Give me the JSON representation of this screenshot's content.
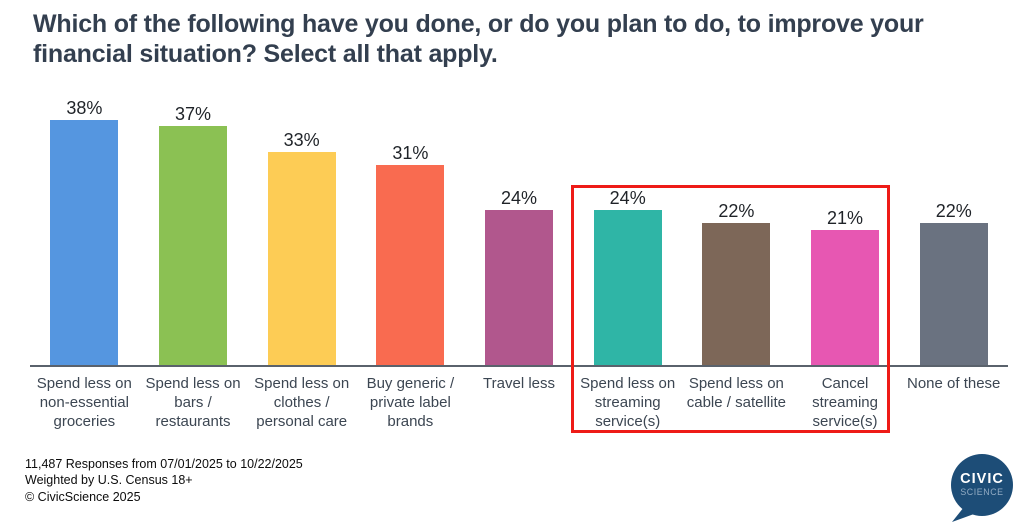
{
  "title": "Which of the following have you done, or do you plan to do, to improve your financial situation? Select all that apply.",
  "chart_data": {
    "type": "bar",
    "categories": [
      "Spend less on non-essential groceries",
      "Spend less on bars / restaurants",
      "Spend less on clothes / personal care",
      "Buy generic / private label brands",
      "Travel less",
      "Spend less on streaming service(s)",
      "Spend less on cable / satellite",
      "Cancel streaming service(s)",
      "None of these"
    ],
    "values": [
      38,
      37,
      33,
      31,
      24,
      24,
      22,
      21,
      22
    ],
    "value_labels": [
      "38%",
      "37%",
      "33%",
      "31%",
      "24%",
      "24%",
      "22%",
      "21%",
      "22%"
    ],
    "bar_colors": [
      "#5596E0",
      "#8BC153",
      "#FDCC55",
      "#F96B50",
      "#B1578D",
      "#2FB5A6",
      "#7D6758",
      "#E757B2",
      "#6A7280"
    ],
    "ylim": [
      0,
      40
    ],
    "grid": false,
    "legend": "none",
    "highlight": {
      "indices": [
        5,
        6,
        7
      ],
      "border_color": "#EE1B17"
    }
  },
  "footer": {
    "line1": "11,487 Responses from 07/01/2025 to 10/22/2025",
    "line2": "Weighted by U.S. Census 18+",
    "line3": "© CivicScience 2025"
  },
  "logo": {
    "brand_top": "CIVIC",
    "brand_bottom": "SCIENCE",
    "bubble_color": "#1D4D77",
    "brand_bottom_color": "#93ACC4"
  },
  "colors": {
    "title": "#333F4F",
    "axis_line": "#5A626C",
    "value_label": "#1F2328",
    "category_label": "#3C4652"
  }
}
